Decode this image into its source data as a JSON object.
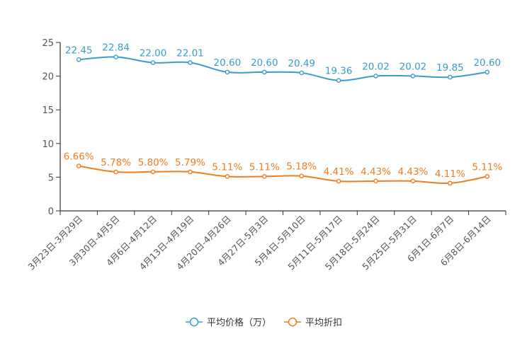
{
  "chart_data": {
    "type": "line",
    "categories": [
      "3月23日-3月29日",
      "3月30日-4月5日",
      "4月6日-4月12日",
      "4月13日-4月19日",
      "4月20日-4月26日",
      "4月27日-5月3日",
      "5月4日-5月10日",
      "5月11日-5月17日",
      "5月18日-5月24日",
      "5月25日-5月31日",
      "6月1日-6月7日",
      "6月8日-6月14日"
    ],
    "series": [
      {
        "name": "平均价格（万）",
        "color": "#3a9dc9",
        "values": [
          22.45,
          22.84,
          22.0,
          22.01,
          20.6,
          20.6,
          20.49,
          19.36,
          20.02,
          20.02,
          19.85,
          20.6
        ],
        "labels": [
          "22.45",
          "22.84",
          "22.00",
          "22.01",
          "20.60",
          "20.60",
          "20.49",
          "19.36",
          "20.02",
          "20.02",
          "19.85",
          "20.60"
        ]
      },
      {
        "name": "平均折扣",
        "color": "#f07d1e",
        "values": [
          6.66,
          5.78,
          5.8,
          5.79,
          5.11,
          5.11,
          5.18,
          4.41,
          4.43,
          4.43,
          4.11,
          5.11
        ],
        "labels": [
          "6.66%",
          "5.78%",
          "5.80%",
          "5.79%",
          "5.11%",
          "5.11%",
          "5.18%",
          "4.41%",
          "4.43%",
          "4.43%",
          "4.11%",
          "5.11%"
        ]
      }
    ],
    "yticks": [
      "0",
      "5",
      "10",
      "15",
      "20",
      "25"
    ],
    "ylim": [
      0,
      25
    ],
    "grid": false,
    "legend_position": "bottom-center"
  }
}
